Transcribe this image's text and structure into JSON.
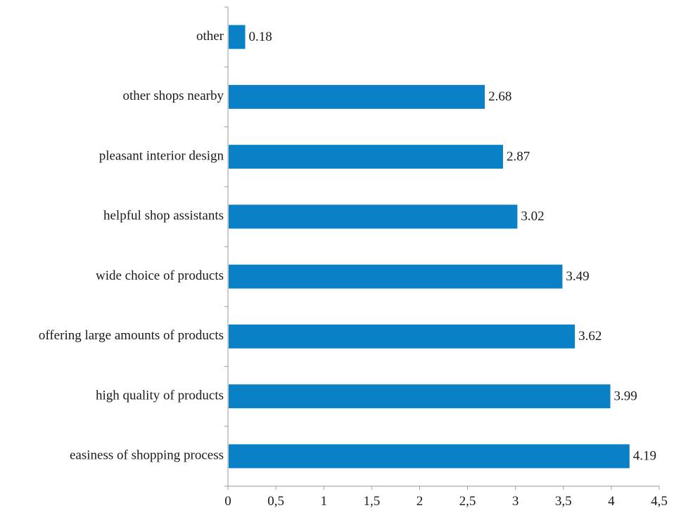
{
  "chart_data": {
    "type": "bar",
    "orientation": "horizontal",
    "categories": [
      "other",
      "other shops nearby",
      "pleasant interior design",
      "helpful shop assistants",
      "wide choice of products",
      "offering large amounts of products",
      "high quality of products",
      "easiness of shopping process"
    ],
    "values": [
      0.18,
      2.68,
      2.87,
      3.02,
      3.49,
      3.62,
      3.99,
      4.19
    ],
    "value_labels": [
      "0.18",
      "2.68",
      "2.87",
      "3.02",
      "3.49",
      "3.62",
      "3.99",
      "4.19"
    ],
    "x_ticks": [
      0,
      0.5,
      1,
      1.5,
      2,
      2.5,
      3,
      3.5,
      4,
      4.5
    ],
    "x_tick_labels": [
      "0",
      "0,5",
      "1",
      "1,5",
      "2",
      "2,5",
      "3",
      "3,5",
      "4",
      "4,5"
    ],
    "xlim": [
      0,
      4.5
    ],
    "title": "",
    "xlabel": "",
    "ylabel": "",
    "grid": false,
    "legend": "none",
    "bar_color": "#0a80c6",
    "axis_color": "#9a9a9a"
  }
}
